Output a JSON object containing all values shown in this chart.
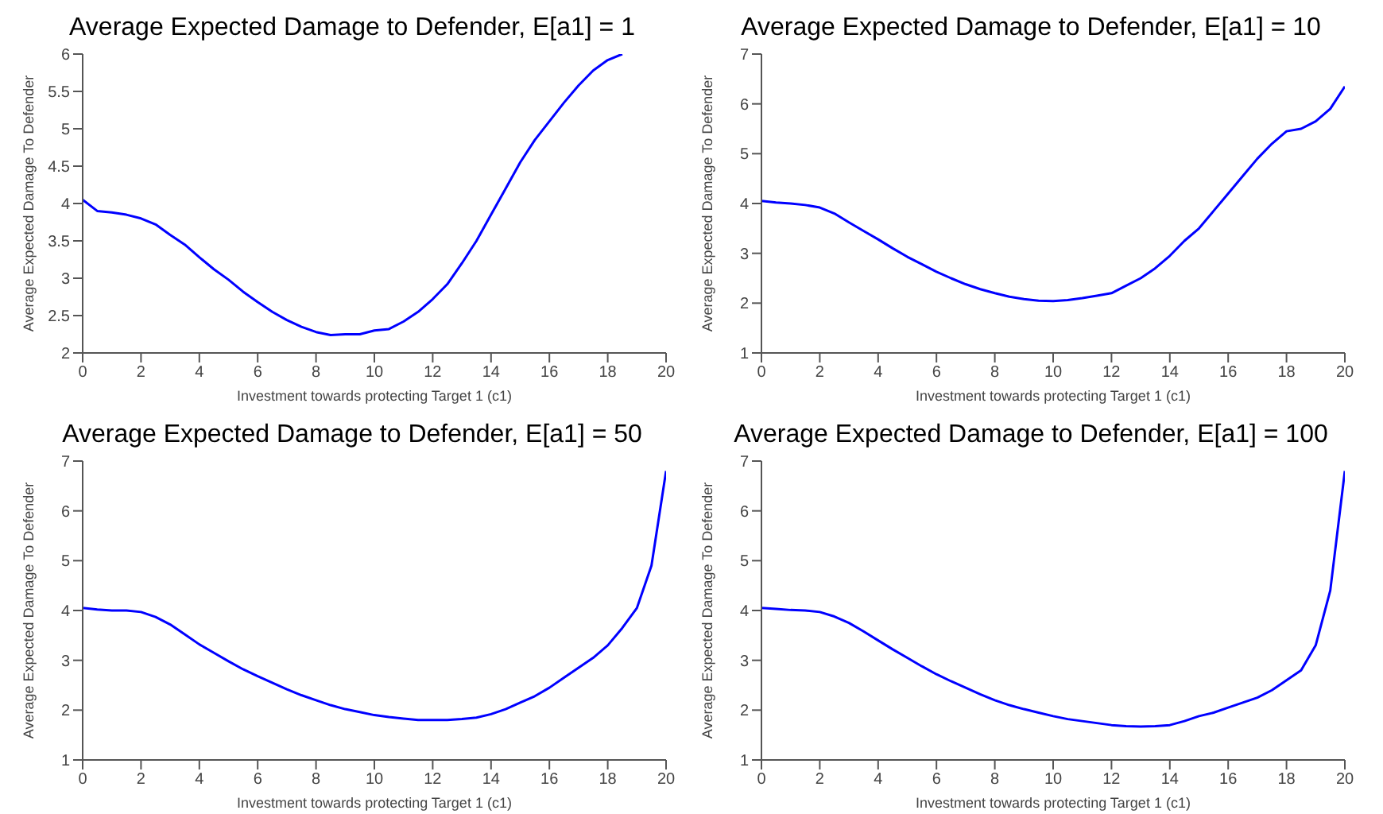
{
  "chart_data": [
    {
      "type": "line",
      "title": "Average Expected Damage to Defender, E[a1] = 1",
      "xlabel": "Investment towards protecting Target 1 (c1)",
      "ylabel": "Average Expected Damage To Defender",
      "x": [
        0,
        0.5,
        1,
        1.5,
        2,
        2.5,
        3,
        3.5,
        4,
        4.5,
        5,
        5.5,
        6,
        6.5,
        7,
        7.5,
        8,
        8.5,
        9,
        9.5,
        10,
        10.5,
        11,
        11.5,
        12,
        12.5,
        13,
        13.5,
        14,
        14.5,
        15,
        15.5,
        16,
        16.5,
        17,
        17.5,
        18,
        18.5
      ],
      "xlim": [
        0,
        20
      ],
      "xticks": [
        0,
        2,
        4,
        6,
        8,
        10,
        12,
        14,
        16,
        18,
        20
      ],
      "ylim": [
        2,
        6
      ],
      "yticks": [
        2,
        2.5,
        3,
        3.5,
        4,
        4.5,
        5,
        5.5,
        6
      ],
      "series": [
        {
          "color": "#0000ff",
          "values": [
            4.05,
            3.9,
            3.88,
            3.85,
            3.8,
            3.72,
            3.58,
            3.45,
            3.28,
            3.12,
            2.98,
            2.82,
            2.68,
            2.55,
            2.44,
            2.35,
            2.28,
            2.24,
            2.25,
            2.25,
            2.3,
            2.32,
            2.42,
            2.55,
            2.72,
            2.92,
            3.2,
            3.5,
            3.85,
            4.2,
            4.55,
            4.85,
            5.1,
            5.35,
            5.58,
            5.78,
            5.92,
            6
          ]
        }
      ]
    },
    {
      "type": "line",
      "title": "Average Expected Damage to Defender, E[a1] = 10",
      "xlabel": "Investment towards protecting Target 1 (c1)",
      "ylabel": "Average Expected Damage To Defender",
      "x": [
        0,
        0.5,
        1,
        1.5,
        2,
        2.5,
        3,
        3.5,
        4,
        4.5,
        5,
        5.5,
        6,
        6.5,
        7,
        7.5,
        8,
        8.5,
        9,
        9.5,
        10,
        10.5,
        11,
        11.5,
        12,
        12.5,
        13,
        13.5,
        14,
        14.5,
        15,
        15.5,
        16,
        16.5,
        17,
        17.5,
        18,
        18.5,
        19,
        19.5,
        20
      ],
      "xlim": [
        0,
        20
      ],
      "xticks": [
        0,
        2,
        4,
        6,
        8,
        10,
        12,
        14,
        16,
        18,
        20
      ],
      "ylim": [
        1,
        7
      ],
      "yticks": [
        1,
        2,
        3,
        4,
        5,
        6,
        7
      ],
      "series": [
        {
          "color": "#0000ff",
          "values": [
            4.05,
            4.02,
            4,
            3.97,
            3.92,
            3.8,
            3.62,
            3.45,
            3.28,
            3.1,
            2.93,
            2.78,
            2.63,
            2.5,
            2.38,
            2.28,
            2.2,
            2.13,
            2.08,
            2.05,
            2.04,
            2.06,
            2.1,
            2.15,
            2.2,
            2.35,
            2.5,
            2.7,
            2.95,
            3.25,
            3.5,
            3.85,
            4.2,
            4.55,
            4.9,
            5.2,
            5.45,
            5.5,
            5.65,
            5.9,
            6.35
          ]
        }
      ]
    },
    {
      "type": "line",
      "title": "Average Expected Damage to Defender, E[a1] = 50",
      "xlabel": "Investment towards protecting Target 1 (c1)",
      "ylabel": "Average Expected Damage To Defender",
      "x": [
        0,
        0.5,
        1,
        1.5,
        2,
        2.5,
        3,
        3.5,
        4,
        4.5,
        5,
        5.5,
        6,
        6.5,
        7,
        7.5,
        8,
        8.5,
        9,
        9.5,
        10,
        10.5,
        11,
        11.5,
        12,
        12.5,
        13,
        13.5,
        14,
        14.5,
        15,
        15.5,
        16,
        16.5,
        17,
        17.5,
        18,
        18.5,
        19,
        19.5,
        20
      ],
      "xlim": [
        0,
        20
      ],
      "xticks": [
        0,
        2,
        4,
        6,
        8,
        10,
        12,
        14,
        16,
        18,
        20
      ],
      "ylim": [
        1,
        7
      ],
      "yticks": [
        1,
        2,
        3,
        4,
        5,
        6,
        7
      ],
      "series": [
        {
          "color": "#0000ff",
          "values": [
            4.05,
            4.02,
            4,
            4,
            3.97,
            3.87,
            3.72,
            3.52,
            3.32,
            3.15,
            2.98,
            2.82,
            2.68,
            2.55,
            2.42,
            2.3,
            2.2,
            2.1,
            2.02,
            1.96,
            1.9,
            1.86,
            1.83,
            1.8,
            1.8,
            1.8,
            1.82,
            1.85,
            1.92,
            2.02,
            2.15,
            2.28,
            2.45,
            2.65,
            2.85,
            3.05,
            3.3,
            3.65,
            4.05,
            4.9,
            6.8
          ]
        }
      ]
    },
    {
      "type": "line",
      "title": "Average Expected Damage to Defender, E[a1] = 100",
      "xlabel": "Investment towards protecting Target 1 (c1)",
      "ylabel": "Average Expected Damage To Defender",
      "x": [
        0,
        0.5,
        1,
        1.5,
        2,
        2.5,
        3,
        3.5,
        4,
        4.5,
        5,
        5.5,
        6,
        6.5,
        7,
        7.5,
        8,
        8.5,
        9,
        9.5,
        10,
        10.5,
        11,
        11.5,
        12,
        12.5,
        13,
        13.5,
        14,
        14.5,
        15,
        15.5,
        16,
        16.5,
        17,
        17.5,
        18,
        18.5,
        19,
        19.5,
        20
      ],
      "xlim": [
        0,
        20
      ],
      "xticks": [
        0,
        2,
        4,
        6,
        8,
        10,
        12,
        14,
        16,
        18,
        20
      ],
      "ylim": [
        1,
        7
      ],
      "yticks": [
        1,
        2,
        3,
        4,
        5,
        6,
        7
      ],
      "series": [
        {
          "color": "#0000ff",
          "values": [
            4.05,
            4.03,
            4.01,
            4,
            3.97,
            3.88,
            3.75,
            3.58,
            3.4,
            3.22,
            3.05,
            2.88,
            2.72,
            2.58,
            2.45,
            2.32,
            2.2,
            2.1,
            2.02,
            1.95,
            1.88,
            1.82,
            1.78,
            1.74,
            1.7,
            1.68,
            1.67,
            1.68,
            1.7,
            1.78,
            1.88,
            1.95,
            2.05,
            2.15,
            2.25,
            2.4,
            2.6,
            2.8,
            3.3,
            4.4,
            6.8
          ]
        }
      ]
    }
  ]
}
